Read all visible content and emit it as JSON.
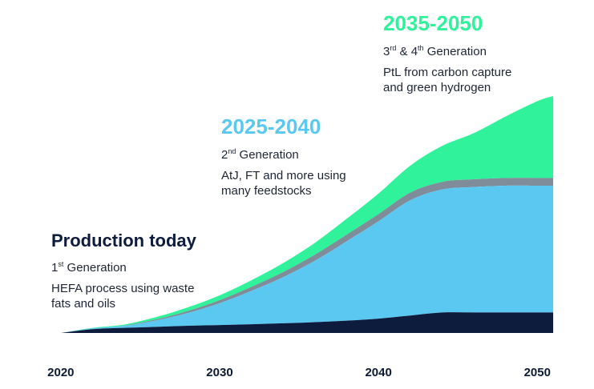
{
  "chart_data": {
    "type": "area",
    "stacked": true,
    "x": [
      2020,
      2022,
      2024,
      2026,
      2028,
      2030,
      2032,
      2034,
      2036,
      2038,
      2040,
      2042,
      2044,
      2046,
      2048,
      2050,
      2051
    ],
    "xticks": [
      "2020",
      "2030",
      "2040",
      "2050"
    ],
    "xlim": [
      2019.2,
      2051.5
    ],
    "ylim": [
      0,
      100
    ],
    "grid": false,
    "series": [
      {
        "key": "gen1",
        "color": "#0d1b3d",
        "values": [
          0,
          1.5,
          2,
          2.4,
          2.8,
          3.1,
          3.4,
          3.8,
          4.2,
          4.8,
          5.6,
          6.8,
          8,
          8,
          8,
          8,
          8
        ]
      },
      {
        "key": "gen2",
        "color": "#5bc8f2",
        "values": [
          0,
          0.3,
          0.8,
          2.5,
          5,
          8.5,
          13,
          18,
          24,
          31,
          38,
          45,
          48,
          49,
          49.5,
          49.5,
          49.5
        ]
      },
      {
        "key": "gap",
        "color": "#7f8c99",
        "values": [
          0,
          0,
          0.1,
          0.4,
          0.8,
          1.2,
          1.6,
          2,
          2.4,
          2.6,
          2.8,
          3,
          3,
          3,
          3,
          3,
          3
        ]
      },
      {
        "key": "gen34",
        "color": "#2ff29a",
        "values": [
          0,
          0.2,
          0.4,
          0.9,
          1.4,
          1.9,
          2.6,
          3.5,
          4.6,
          6.2,
          8,
          10.5,
          14,
          18,
          24,
          30,
          32
        ]
      }
    ],
    "annotations": [
      {
        "key": "today",
        "title": "Production today",
        "gen_num": "1",
        "gen_sup": "st",
        "gen_rest": "Generation",
        "desc": [
          "HEFA process using waste",
          "fats and oils"
        ],
        "color": "#0d1b3d"
      },
      {
        "key": "mid",
        "title": "2025-2040",
        "gen_num": "2",
        "gen_sup": "nd",
        "gen_rest": "Generation",
        "desc": [
          "AtJ, FT and more using",
          "many feedstocks"
        ],
        "color": "#5bc8f2"
      },
      {
        "key": "late",
        "title": "2035-2050",
        "gen_num": "3",
        "gen_sup": "rd",
        "gen_mid": "& 4",
        "gen_sup2": "th",
        "gen_rest": "Generation",
        "desc": [
          "PtL from carbon capture",
          "and green hydrogen"
        ],
        "color": "#2ff29a"
      }
    ]
  }
}
